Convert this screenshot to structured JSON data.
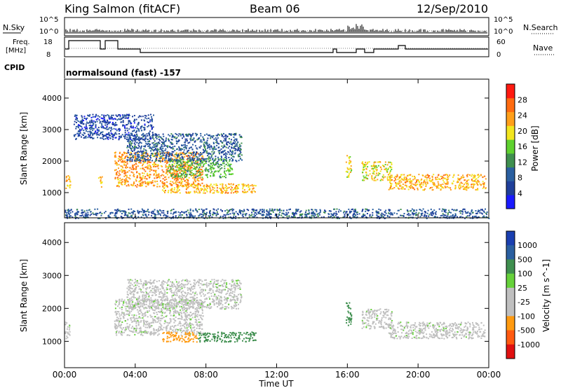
{
  "header": {
    "station": "King Salmon (fitACF)",
    "beam": "Beam 06",
    "date": "12/Sep/2010"
  },
  "top_strips": {
    "nsky_label": "N.Sky",
    "nsearch_label": "N.Search",
    "left_ticks": [
      "10^5",
      "10^0"
    ],
    "right_ticks": [
      "10^5",
      "10^0"
    ],
    "freq_label_1": "Freq.",
    "freq_label_2": "[MHz]",
    "freq_ticks": [
      "18",
      "8"
    ],
    "nave_label": "Nave",
    "nave_ticks": [
      "60",
      "0"
    ],
    "cpid_label": "CPID",
    "cpid_text": "normalsound (fast) -157"
  },
  "colors": {
    "power_scale": [
      "#1a1aff",
      "#1f3f9a",
      "#2a5fa0",
      "#3f8f4f",
      "#5fd12f",
      "#f2e51f",
      "#ff9f1a",
      "#ff6b10",
      "#ff1a10"
    ],
    "velocity_scale": [
      "#e01010",
      "#ff5a10",
      "#ff9a10",
      "#bfbfbf",
      "#bfbfbf",
      "#66d13a",
      "#3f8f4f",
      "#2a5fa0",
      "#1a3fb0"
    ]
  },
  "chart_data": [
    {
      "type": "heatmap",
      "name": "power-panel",
      "ylabel": "Slant Range [km]",
      "yticks": [
        1000,
        2000,
        3000,
        4000
      ],
      "ylim": [
        200,
        4600
      ],
      "xlim": [
        0,
        24
      ],
      "colorbar_label": "Power [dB]",
      "colorbar_ticks": [
        "4",
        "8",
        "12",
        "16",
        "20",
        "24",
        "28"
      ],
      "colorbar_range": [
        0,
        32
      ],
      "features": [
        {
          "t0": 0.0,
          "t1": 0.3,
          "r0": 1100,
          "r1": 1600,
          "value": 22
        },
        {
          "t0": 1.9,
          "t1": 2.1,
          "r0": 1200,
          "r1": 1600,
          "value": 22
        },
        {
          "t0": 2.8,
          "t1": 7.8,
          "r0": 1200,
          "r1": 2300,
          "value": 24
        },
        {
          "t0": 5.5,
          "t1": 10.8,
          "r0": 1000,
          "r1": 1300,
          "value": 22
        },
        {
          "t0": 5.8,
          "t1": 9.5,
          "r0": 1500,
          "r1": 2100,
          "value": 14
        },
        {
          "t0": 3.5,
          "t1": 10.0,
          "r0": 2000,
          "r1": 2900,
          "value": 8
        },
        {
          "t0": 0.5,
          "t1": 5.0,
          "r0": 2700,
          "r1": 3500,
          "value": 6
        },
        {
          "t0": 15.9,
          "t1": 16.2,
          "r0": 1500,
          "r1": 2200,
          "value": 20
        },
        {
          "t0": 16.8,
          "t1": 18.5,
          "r0": 1400,
          "r1": 2000,
          "value": 20
        },
        {
          "t0": 18.3,
          "t1": 23.8,
          "r0": 1100,
          "r1": 1600,
          "value": 22
        },
        {
          "t0": 0.0,
          "t1": 24.0,
          "r0": 200,
          "r1": 500,
          "value": 8
        }
      ]
    },
    {
      "type": "heatmap",
      "name": "velocity-panel",
      "ylabel": "Slant Range [km]",
      "yticks": [
        1000,
        2000,
        3000,
        4000
      ],
      "ylim": [
        200,
        4600
      ],
      "xlim": [
        0,
        24
      ],
      "colorbar_label": "Velocity [m s^-1]",
      "colorbar_ticks": [
        "1000",
        "500",
        "100",
        "25",
        "-25",
        "-100",
        "-500",
        "-1000"
      ],
      "features": [
        {
          "t0": 0.0,
          "t1": 0.3,
          "r0": 1100,
          "r1": 1600,
          "value": 0
        },
        {
          "t0": 2.8,
          "t1": 7.8,
          "r0": 1200,
          "r1": 2300,
          "value": 0
        },
        {
          "t0": 5.5,
          "t1": 7.5,
          "r0": 1000,
          "r1": 1300,
          "value": -300
        },
        {
          "t0": 7.5,
          "t1": 10.8,
          "r0": 1000,
          "r1": 1300,
          "value": 200
        },
        {
          "t0": 3.5,
          "t1": 10.0,
          "r0": 2000,
          "r1": 2900,
          "value": 0
        },
        {
          "t0": 15.9,
          "t1": 16.2,
          "r0": 1500,
          "r1": 2200,
          "value": 300
        },
        {
          "t0": 16.8,
          "t1": 18.5,
          "r0": 1400,
          "r1": 2000,
          "value": 0
        },
        {
          "t0": 18.3,
          "t1": 23.8,
          "r0": 1100,
          "r1": 1600,
          "value": 0
        }
      ]
    }
  ],
  "xaxis": {
    "ticks": [
      "00:00",
      "04:00",
      "08:00",
      "12:00",
      "16:00",
      "20:00",
      "00:00"
    ],
    "label": "Time UT"
  }
}
